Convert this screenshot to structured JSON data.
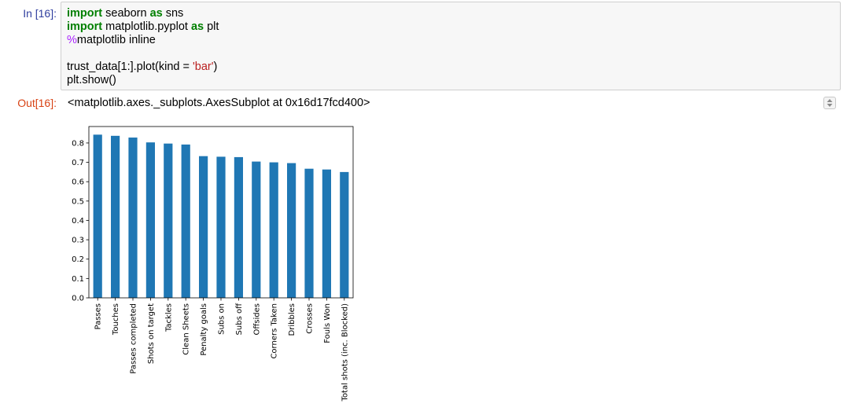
{
  "cell": {
    "in_prompt": "In [16]:",
    "out_prompt": "Out[16]:",
    "code": {
      "line1": {
        "kw1": "import",
        "mid": " seaborn ",
        "kw2": "as",
        "end": " sns"
      },
      "line2": {
        "kw1": "import",
        "mid": " matplotlib.pyplot ",
        "kw2": "as",
        "end": " plt"
      },
      "line3": {
        "magic": "%",
        "rest": "matplotlib inline"
      },
      "line5": {
        "pre": "trust_data[1:].plot(kind = ",
        "str": "'bar'",
        "post": ")"
      },
      "line6": "plt.show()"
    },
    "output_text": "<matplotlib.axes._subplots.AxesSubplot at 0x16d17fcd400>"
  },
  "icons": {
    "scroll_toggle": "up-down-arrows-icon"
  },
  "colors": {
    "bar": "#1f77b4",
    "in_prompt": "#303f9f",
    "out_prompt": "#d84315",
    "keyword": "#008000",
    "magic": "#aa22ff",
    "string": "#ba2121"
  },
  "chart_data": {
    "type": "bar",
    "categories": [
      "Passes",
      "Touches",
      "Passes completed",
      "Shots on target",
      "Tackles",
      "Clean Sheets",
      "Penalty goals",
      "Subs on",
      "Subs off",
      "Offsides",
      "Corners Taken",
      "Dribbles",
      "Crosses",
      "Fouls Won",
      "Total shots (inc. Blocked)"
    ],
    "values": [
      0.843,
      0.837,
      0.828,
      0.803,
      0.797,
      0.792,
      0.732,
      0.729,
      0.727,
      0.704,
      0.7,
      0.696,
      0.667,
      0.663,
      0.65
    ],
    "yticks": [
      "0.0",
      "0.1",
      "0.2",
      "0.3",
      "0.4",
      "0.5",
      "0.6",
      "0.7",
      "0.8"
    ],
    "ylim": [
      0,
      0.885
    ],
    "title": "",
    "xlabel": "",
    "ylabel": "",
    "grid": false
  }
}
